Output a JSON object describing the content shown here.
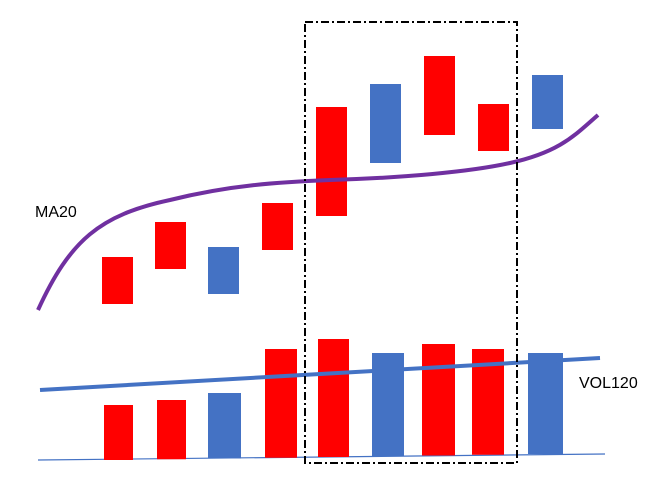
{
  "labels": {
    "ma": "MA20",
    "vol": "VOL120"
  },
  "colors": {
    "up": "#ff0000",
    "down": "#4472c4",
    "ma_line": "#7030a0",
    "vol_line": "#4472c4",
    "box": "#000000"
  },
  "candles": [
    "up",
    "up",
    "down",
    "up",
    "up",
    "down",
    "up",
    "up",
    "down"
  ],
  "volume": [
    "up",
    "up",
    "down",
    "up",
    "up",
    "down",
    "up",
    "up",
    "down"
  ],
  "highlight_range": [
    5,
    8
  ]
}
